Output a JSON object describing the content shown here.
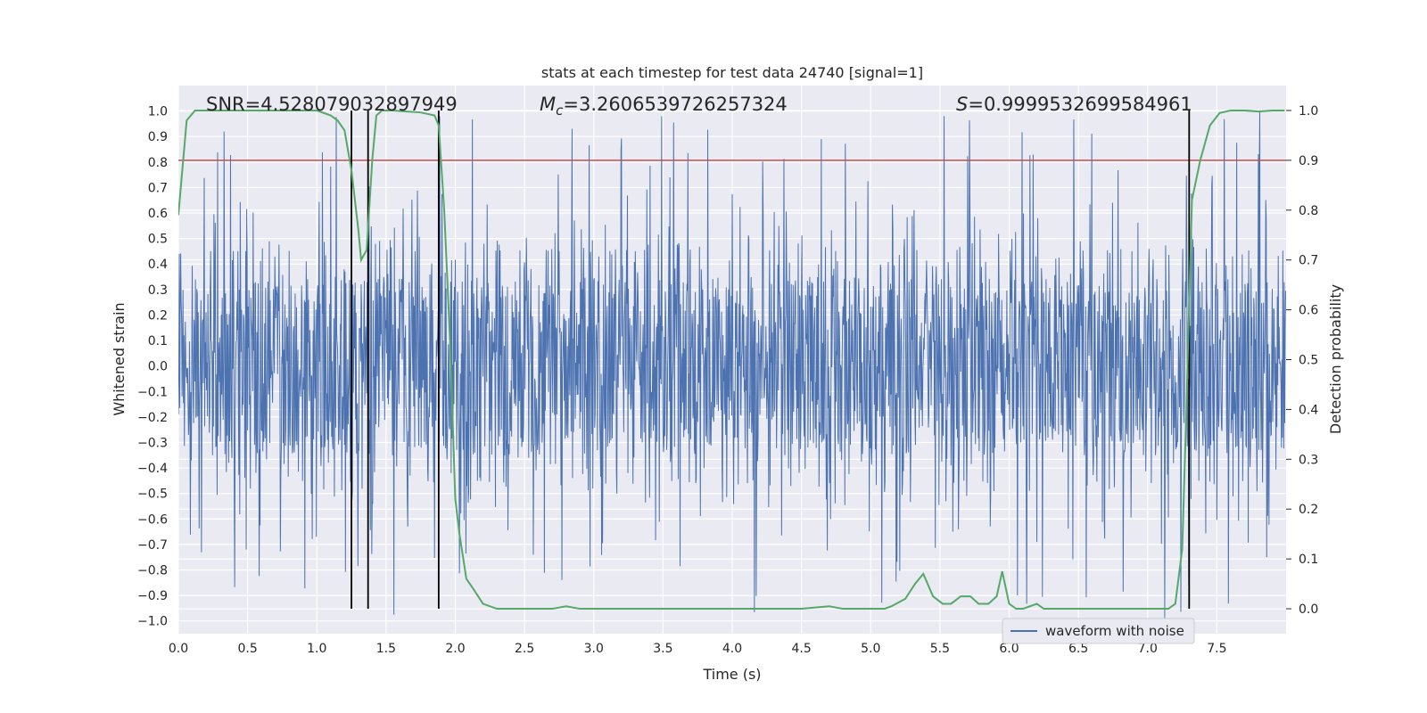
{
  "chart_data": {
    "type": "line",
    "title": "stats at each timestep for test data 24740 [signal=1]",
    "xlabel": "Time (s)",
    "ylabel": "Whitened strain",
    "y2label": "Detection probability",
    "xlim": [
      0.0,
      8.0
    ],
    "ylim": [
      -1.05,
      1.1
    ],
    "y2lim": [
      -0.05,
      1.05
    ],
    "xticks": [
      0.0,
      0.5,
      1.0,
      1.5,
      2.0,
      2.5,
      3.0,
      3.5,
      4.0,
      4.5,
      5.0,
      5.5,
      6.0,
      6.5,
      7.0,
      7.5
    ],
    "xtick_labels": [
      "0.0",
      "0.5",
      "1.0",
      "1.5",
      "2.0",
      "2.5",
      "3.0",
      "3.5",
      "4.0",
      "4.5",
      "5.0",
      "5.5",
      "6.0",
      "6.5",
      "7.0",
      "7.5"
    ],
    "yticks": [
      -1.0,
      -0.9,
      -0.8,
      -0.7,
      -0.6,
      -0.5,
      -0.4,
      -0.3,
      -0.2,
      -0.1,
      0.0,
      0.1,
      0.2,
      0.3,
      0.4,
      0.5,
      0.6,
      0.7,
      0.8,
      0.9,
      1.0
    ],
    "ytick_labels": [
      "−1.0",
      "−0.9",
      "−0.8",
      "−0.7",
      "−0.6",
      "−0.5",
      "−0.4",
      "−0.3",
      "−0.2",
      "−0.1",
      "0.0",
      "0.1",
      "0.2",
      "0.3",
      "0.4",
      "0.5",
      "0.6",
      "0.7",
      "0.8",
      "0.9",
      "1.0"
    ],
    "y2ticks": [
      0.0,
      0.1,
      0.2,
      0.3,
      0.4,
      0.5,
      0.6,
      0.7,
      0.8,
      0.9,
      1.0
    ],
    "y2tick_labels": [
      "0.0",
      "0.1",
      "0.2",
      "0.3",
      "0.4",
      "0.5",
      "0.6",
      "0.7",
      "0.8",
      "0.9",
      "1.0"
    ],
    "annotations": {
      "snr": "SNR=4.528079032897949",
      "mc_symbol": "M",
      "mc_sub": "c",
      "mc_value": "=3.2606539726257324",
      "s_symbol": "S",
      "s_value": "=0.9999532699584961"
    },
    "threshold": {
      "value": 0.9,
      "axis": "right",
      "color": "#c44e52"
    },
    "vertical_lines": [
      1.25,
      1.37,
      1.88,
      7.3
    ],
    "waveform": {
      "name": "waveform with noise",
      "color": "#4c72b0",
      "sample_rate": 300,
      "core_amplitude": 0.35,
      "envelope_max": 0.45,
      "spike_count": 340,
      "spike_range": [
        0.45,
        1.0
      ],
      "seed": 24740
    },
    "series": [
      {
        "name": "detection probability",
        "axis": "right",
        "color": "#55a868",
        "x": [
          0.0,
          0.06,
          0.12,
          0.2,
          0.3,
          0.4,
          0.5,
          0.6,
          0.7,
          0.8,
          0.9,
          1.0,
          1.05,
          1.1,
          1.15,
          1.2,
          1.25,
          1.3,
          1.32,
          1.36,
          1.4,
          1.43,
          1.47,
          1.55,
          1.65,
          1.75,
          1.85,
          1.88,
          1.92,
          1.96,
          2.0,
          2.03,
          2.08,
          2.13,
          2.2,
          2.3,
          2.4,
          2.6,
          2.7,
          2.8,
          2.9,
          3.0,
          3.1,
          3.3,
          3.5,
          3.7,
          3.9,
          4.1,
          4.3,
          4.5,
          4.7,
          4.8,
          4.9,
          5.0,
          5.1,
          5.15,
          5.25,
          5.32,
          5.38,
          5.45,
          5.52,
          5.58,
          5.65,
          5.72,
          5.78,
          5.85,
          5.91,
          5.95,
          6.0,
          6.05,
          6.1,
          6.15,
          6.2,
          6.25,
          6.3,
          6.4,
          6.6,
          6.8,
          7.0,
          7.15,
          7.2,
          7.25,
          7.28,
          7.32,
          7.38,
          7.45,
          7.52,
          7.6,
          7.7,
          7.8,
          7.9,
          7.99
        ],
        "y": [
          0.79,
          0.98,
          1.0,
          1.0,
          1.0,
          1.0,
          1.0,
          1.0,
          1.0,
          1.0,
          1.0,
          1.0,
          0.995,
          0.99,
          0.98,
          0.96,
          0.88,
          0.76,
          0.7,
          0.72,
          0.9,
          0.99,
          1.0,
          1.0,
          0.998,
          0.996,
          0.99,
          0.97,
          0.8,
          0.55,
          0.22,
          0.15,
          0.06,
          0.04,
          0.01,
          0.0,
          0.0,
          0.0,
          0.0,
          0.005,
          0.0,
          0.0,
          0.0,
          0.0,
          0.0,
          0.0,
          0.0,
          0.0,
          0.0,
          0.0,
          0.005,
          0.0,
          0.0,
          0.0,
          0.0,
          0.005,
          0.02,
          0.05,
          0.07,
          0.025,
          0.01,
          0.01,
          0.025,
          0.025,
          0.01,
          0.01,
          0.025,
          0.075,
          0.01,
          0.0,
          0.0,
          0.005,
          0.01,
          0.0,
          0.0,
          0.0,
          0.0,
          0.0,
          0.0,
          0.0,
          0.01,
          0.12,
          0.4,
          0.82,
          0.9,
          0.97,
          0.995,
          1.0,
          1.0,
          0.998,
          1.0,
          1.0
        ]
      }
    ],
    "legend": {
      "position": "lower-right",
      "entries": [
        "waveform with noise"
      ]
    }
  }
}
